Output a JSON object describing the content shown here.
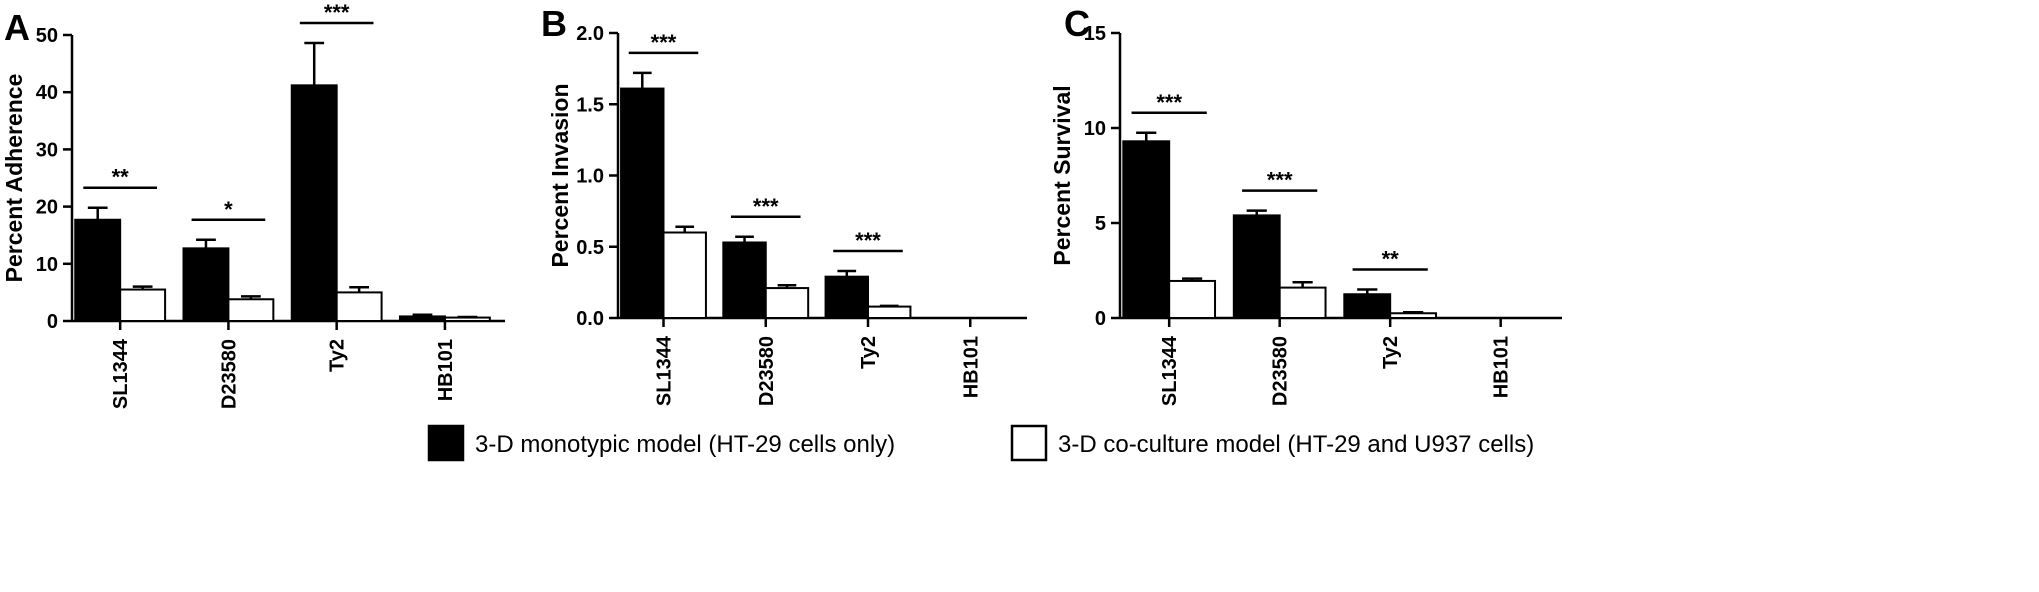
{
  "colors": {
    "monotypic": "#000000",
    "coculture": "#ffffff",
    "axis": "#000000"
  },
  "legend": {
    "items": [
      {
        "label": "3-D monotypic model (HT-29 cells only)",
        "color": "#000000"
      },
      {
        "label": "3-D co-culture model (HT-29 and U937 cells)",
        "color": "#ffffff"
      }
    ]
  },
  "chart_data": [
    {
      "panel": "A",
      "type": "bar",
      "ylabel": "Percent Adherence",
      "ylim": [
        0,
        50
      ],
      "yticks": [
        "0",
        "10",
        "20",
        "30",
        "40",
        "50"
      ],
      "categories": [
        "SL1344",
        "D23580",
        "Ty2",
        "HB101"
      ],
      "series": [
        {
          "name": "3-D monotypic model (HT-29 cells only)",
          "values": [
            17.7,
            12.7,
            41.2,
            0.8
          ],
          "errors": [
            2.1,
            1.5,
            7.4,
            0.3
          ]
        },
        {
          "name": "3-D co-culture model (HT-29 and U937 cells)",
          "values": [
            5.5,
            3.8,
            5.0,
            0.6
          ],
          "errors": [
            0.5,
            0.5,
            0.9,
            0.1
          ]
        }
      ],
      "significance": [
        "**",
        "*",
        "***",
        ""
      ]
    },
    {
      "panel": "B",
      "type": "bar",
      "ylabel": "Percent Invasion",
      "ylim": [
        0,
        2.0
      ],
      "yticks": [
        "0.0",
        "0.5",
        "1.0",
        "1.5",
        "2.0"
      ],
      "categories": [
        "SL1344",
        "D23580",
        "Ty2",
        "HB101"
      ],
      "series": [
        {
          "name": "3-D monotypic model (HT-29 cells only)",
          "values": [
            1.61,
            0.53,
            0.29,
            0.0
          ],
          "errors": [
            0.11,
            0.04,
            0.04,
            0.0
          ]
        },
        {
          "name": "3-D co-culture model (HT-29 and U937 cells)",
          "values": [
            0.6,
            0.21,
            0.08,
            0.0
          ],
          "errors": [
            0.04,
            0.02,
            0.005,
            0.0
          ]
        }
      ],
      "significance": [
        "***",
        "***",
        "***",
        ""
      ]
    },
    {
      "panel": "C",
      "type": "bar",
      "ylabel": "Percent Survival",
      "ylim": [
        0,
        15
      ],
      "yticks": [
        "0",
        "5",
        "10",
        "15"
      ],
      "categories": [
        "SL1344",
        "D23580",
        "Ty2",
        "HB101"
      ],
      "series": [
        {
          "name": "3-D monotypic model (HT-29 cells only)",
          "values": [
            9.3,
            5.4,
            1.25,
            0.0
          ],
          "errors": [
            0.45,
            0.25,
            0.25,
            0.0
          ]
        },
        {
          "name": "3-D co-culture model (HT-29 and U937 cells)",
          "values": [
            1.95,
            1.6,
            0.25,
            0.0
          ],
          "errors": [
            0.12,
            0.28,
            0.05,
            0.0
          ]
        }
      ],
      "significance": [
        "***",
        "***",
        "**",
        ""
      ]
    }
  ]
}
